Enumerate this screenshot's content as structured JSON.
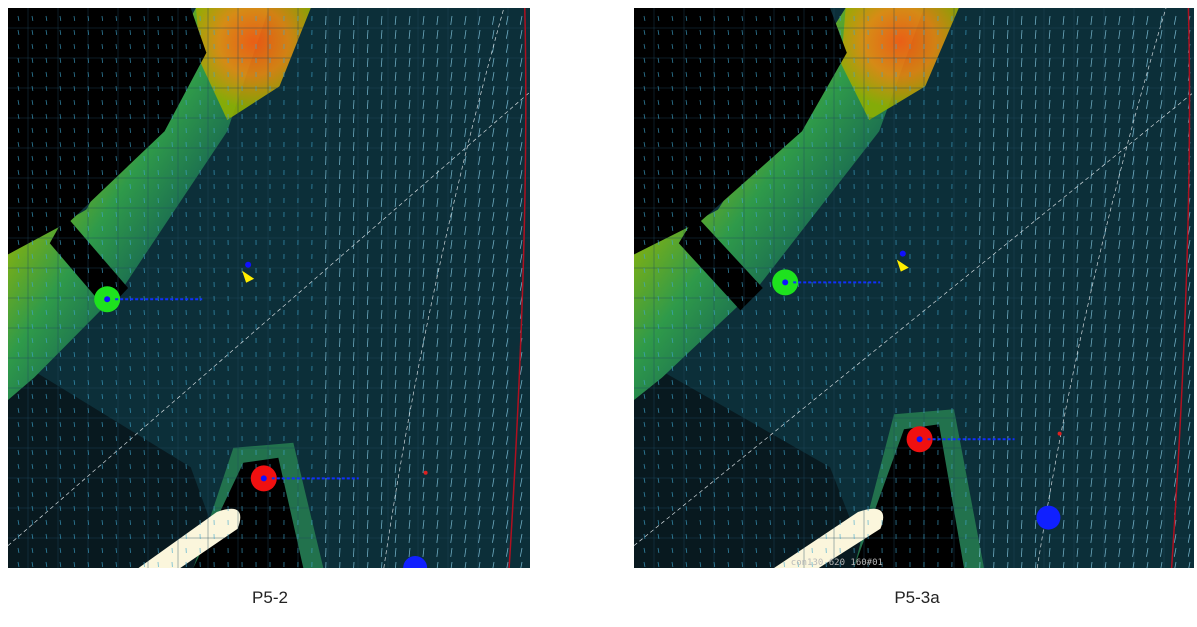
{
  "panels": [
    {
      "caption": "P5-2"
    },
    {
      "caption": "P5-3a",
      "overlay_text": "con130 620 160#01"
    }
  ]
}
